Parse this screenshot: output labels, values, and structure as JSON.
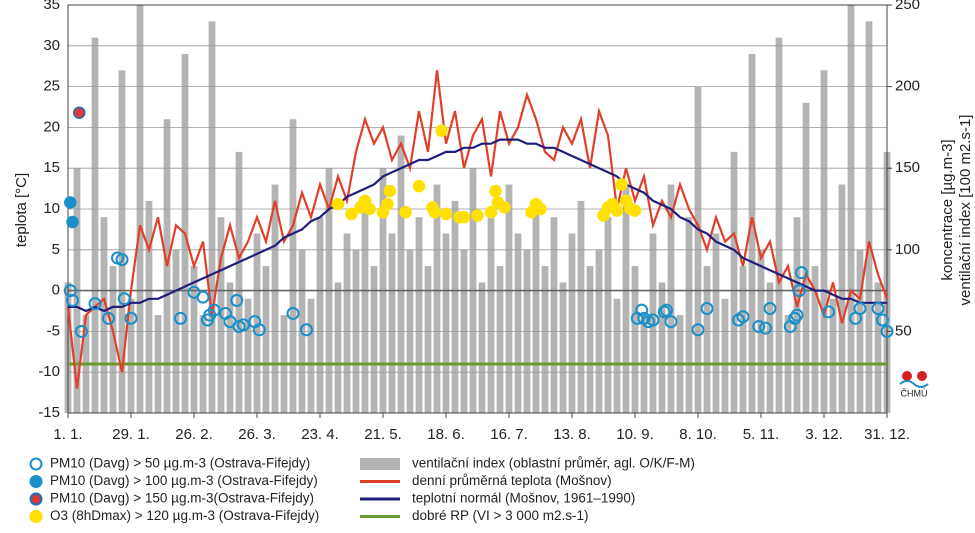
{
  "chart_data": {
    "type": "line",
    "y_label": "teplota [°C]",
    "y2_label": [
      "koncentrace [µg.m-3]",
      "ventilační index [100 m2.s-1]"
    ],
    "logo_text": "ČHMÚ",
    "xlim": [
      0,
      364
    ],
    "xticks": [
      {
        "value": 0,
        "label": "1. 1."
      },
      {
        "value": 28,
        "label": "29. 1."
      },
      {
        "value": 56,
        "label": "26. 2."
      },
      {
        "value": 84,
        "label": "26. 3."
      },
      {
        "value": 112,
        "label": "23. 4."
      },
      {
        "value": 140,
        "label": "21. 5."
      },
      {
        "value": 168,
        "label": "18. 6."
      },
      {
        "value": 196,
        "label": "16. 7."
      },
      {
        "value": 224,
        "label": "13. 8."
      },
      {
        "value": 252,
        "label": "10. 9."
      },
      {
        "value": 280,
        "label": "8. 10."
      },
      {
        "value": 308,
        "label": "5. 11."
      },
      {
        "value": 336,
        "label": "3. 12."
      },
      {
        "value": 364,
        "label": "31. 12."
      }
    ],
    "ylim": [
      -15,
      35
    ],
    "yticks": [
      -15,
      -10,
      -5,
      0,
      5,
      10,
      15,
      20,
      25,
      30,
      35
    ],
    "y2lim": [
      0,
      250
    ],
    "y2ticks": [
      50,
      100,
      150,
      200,
      250
    ],
    "grid": true,
    "x": [
      0,
      4,
      8,
      12,
      16,
      20,
      24,
      28,
      32,
      36,
      40,
      44,
      48,
      52,
      56,
      60,
      64,
      68,
      72,
      76,
      80,
      84,
      88,
      92,
      96,
      100,
      104,
      108,
      112,
      116,
      120,
      124,
      128,
      132,
      136,
      140,
      144,
      148,
      152,
      156,
      160,
      164,
      168,
      172,
      176,
      180,
      184,
      188,
      192,
      196,
      200,
      204,
      208,
      212,
      216,
      220,
      224,
      228,
      232,
      236,
      240,
      244,
      248,
      252,
      256,
      260,
      264,
      268,
      272,
      276,
      280,
      284,
      288,
      292,
      296,
      300,
      304,
      308,
      312,
      316,
      320,
      324,
      328,
      332,
      336,
      340,
      344,
      348,
      352,
      356,
      360,
      364
    ],
    "series": [
      {
        "name": "ventilační index (oblastní průměr, agl. O/K/F-M)",
        "color": "#b4b4b4",
        "type": "bar",
        "axis": "y2",
        "values": [
          80,
          150,
          60,
          230,
          120,
          90,
          210,
          70,
          250,
          130,
          60,
          180,
          100,
          220,
          90,
          60,
          240,
          120,
          80,
          160,
          70,
          110,
          90,
          140,
          60,
          180,
          100,
          70,
          120,
          150,
          80,
          110,
          100,
          130,
          90,
          150,
          110,
          170,
          100,
          120,
          90,
          140,
          110,
          130,
          100,
          150,
          80,
          120,
          90,
          140,
          110,
          100,
          130,
          90,
          120,
          80,
          110,
          130,
          90,
          100,
          120,
          70,
          140,
          90,
          60,
          110,
          80,
          140,
          60,
          120,
          200,
          90,
          110,
          70,
          160,
          90,
          220,
          100,
          80,
          230,
          60,
          120,
          190,
          90,
          210,
          70,
          140,
          250,
          100,
          240,
          80,
          160
        ]
      },
      {
        "name": "denní průměrná teplota (Mošnov)",
        "color": "#e0402a",
        "values": [
          -2,
          -12,
          -3,
          -2,
          -1,
          -5,
          -10,
          0,
          8,
          5,
          9,
          3,
          8,
          7,
          3,
          6,
          -3,
          4,
          8,
          4,
          6,
          9,
          6,
          11,
          6,
          8,
          12,
          9,
          13,
          10,
          14,
          11,
          17,
          21,
          18,
          20,
          16,
          18,
          15,
          22,
          17,
          27,
          18,
          22,
          15,
          19,
          21,
          14,
          22,
          18,
          20,
          24,
          21,
          17,
          16,
          20,
          18,
          21,
          15,
          22,
          19,
          10,
          15,
          11,
          14,
          8,
          11,
          9,
          13,
          10,
          8,
          5,
          9,
          6,
          7,
          3,
          9,
          4,
          6,
          1,
          3,
          -2,
          2,
          0,
          -3,
          1,
          -4,
          0,
          -1,
          6,
          2,
          -1
        ]
      },
      {
        "name": "teplotní normál (Mošnov, 1961–1990)",
        "color": "#1f1f7a",
        "values": [
          -2,
          -2,
          -2.5,
          -2,
          -2.5,
          -2,
          -2,
          -1.5,
          -1.5,
          -1,
          -1,
          -0.5,
          0,
          0.5,
          1,
          1.5,
          2,
          2.5,
          3,
          3.5,
          4,
          4.5,
          5,
          5.5,
          6.5,
          7,
          7.5,
          8.5,
          9,
          10,
          10.5,
          11.5,
          12,
          12.5,
          13,
          14,
          14.5,
          15,
          15.5,
          16,
          16,
          16.5,
          17,
          17,
          17.5,
          17.5,
          18,
          18,
          18.5,
          18.5,
          18.5,
          18,
          18,
          17.5,
          17.5,
          17,
          16.5,
          16,
          15.5,
          15,
          14.5,
          14,
          13,
          12.5,
          12,
          11,
          10.5,
          10,
          9,
          8.5,
          7.5,
          7,
          6,
          5.5,
          5,
          4,
          3.5,
          3,
          2.5,
          2,
          1.5,
          1,
          0.5,
          0,
          0,
          -0.5,
          -1,
          -1,
          -1.5,
          -1.5,
          -1.5,
          -1.5
        ]
      }
    ],
    "threshold": {
      "name": "dobré RP (VI > 3 000 m2.s-1)",
      "color": "#6a9a2a",
      "value": 30,
      "axis": "y2"
    },
    "scatter": [
      {
        "name": "PM10 (Davg) > 50 µg.m-3 (Ostrava-Fifejdy)",
        "color": "#1a8fc8",
        "marker": "hollow",
        "axis": "y2",
        "points": [
          [
            1,
            75
          ],
          [
            2,
            69
          ],
          [
            6,
            50
          ],
          [
            12,
            67
          ],
          [
            18,
            58
          ],
          [
            22,
            95
          ],
          [
            24,
            94
          ],
          [
            25,
            70
          ],
          [
            28,
            58
          ],
          [
            50,
            58
          ],
          [
            56,
            74
          ],
          [
            60,
            71
          ],
          [
            62,
            57
          ],
          [
            63,
            60
          ],
          [
            65,
            63
          ],
          [
            70,
            61
          ],
          [
            72,
            56
          ],
          [
            75,
            69
          ],
          [
            76,
            53
          ],
          [
            78,
            54
          ],
          [
            83,
            56
          ],
          [
            85,
            51
          ],
          [
            100,
            61
          ],
          [
            106,
            51
          ],
          [
            253,
            58
          ],
          [
            255,
            63
          ],
          [
            256,
            58
          ],
          [
            258,
            56
          ],
          [
            260,
            57
          ],
          [
            265,
            62
          ],
          [
            266,
            63
          ],
          [
            268,
            56
          ],
          [
            280,
            51
          ],
          [
            284,
            64
          ],
          [
            298,
            57
          ],
          [
            300,
            59
          ],
          [
            307,
            53
          ],
          [
            310,
            52
          ],
          [
            312,
            64
          ],
          [
            321,
            53
          ],
          [
            323,
            58
          ],
          [
            324,
            60
          ],
          [
            325,
            75
          ],
          [
            326,
            86
          ],
          [
            338,
            62
          ],
          [
            350,
            58
          ],
          [
            352,
            64
          ],
          [
            360,
            64
          ],
          [
            362,
            57
          ],
          [
            364,
            50
          ]
        ]
      },
      {
        "name": "PM10 (Davg) > 100 µg.m-3 (Ostrava-Fifejdy)",
        "color": "#1a8fc8",
        "marker": "filled",
        "axis": "y2",
        "points": [
          [
            1,
            129
          ],
          [
            2,
            117
          ]
        ]
      },
      {
        "name": "PM10 (Davg) > 150 µg.m-3(Ostrava-Fifejdy)",
        "color": "#d83a3a",
        "edgecolor": "#1a6fb8",
        "marker": "filled",
        "axis": "y2",
        "points": [
          [
            5,
            184
          ]
        ]
      },
      {
        "name": "O3 (8hDmax) > 120 µg.m-3 (Ostrava-Fifejdy)",
        "color": "#ffe000",
        "marker": "filled",
        "axis": "y2",
        "points": [
          [
            120,
            128
          ],
          [
            126,
            122
          ],
          [
            130,
            126
          ],
          [
            132,
            130
          ],
          [
            134,
            125
          ],
          [
            140,
            123
          ],
          [
            142,
            128
          ],
          [
            143,
            136
          ],
          [
            150,
            123
          ],
          [
            156,
            139
          ],
          [
            162,
            126
          ],
          [
            163,
            123
          ],
          [
            166,
            173
          ],
          [
            168,
            122
          ],
          [
            174,
            120
          ],
          [
            176,
            120
          ],
          [
            182,
            121
          ],
          [
            188,
            123
          ],
          [
            190,
            136
          ],
          [
            191,
            129
          ],
          [
            194,
            126
          ],
          [
            206,
            123
          ],
          [
            208,
            128
          ],
          [
            210,
            125
          ],
          [
            238,
            121
          ],
          [
            240,
            126
          ],
          [
            242,
            128
          ],
          [
            244,
            124
          ],
          [
            246,
            140
          ],
          [
            248,
            130
          ],
          [
            250,
            125
          ],
          [
            252,
            124
          ]
        ]
      }
    ]
  }
}
